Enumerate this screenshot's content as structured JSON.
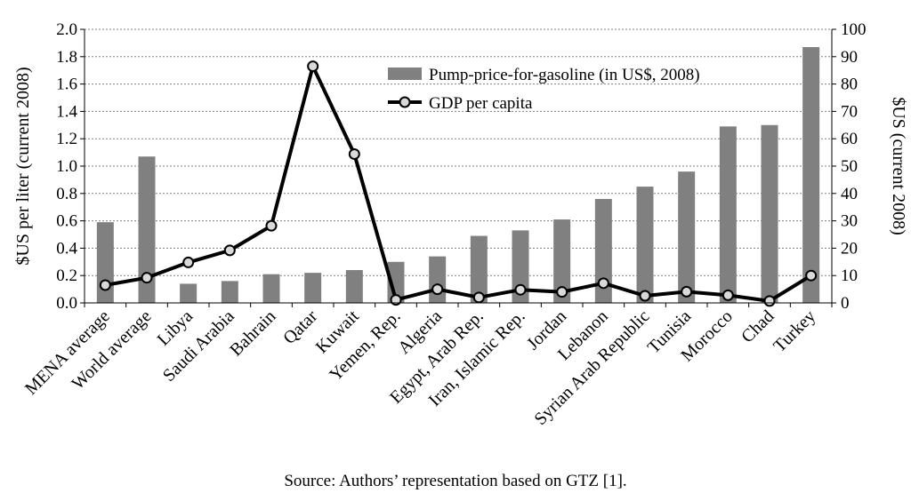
{
  "chart_data": {
    "type": "bar+line",
    "categories": [
      "MENA average",
      "World average",
      "Libya",
      "Saudi Arabia",
      "Bahrain",
      "Qatar",
      "Kuwait",
      "Yemen, Rep.",
      "Algeria",
      "Egypt, Arab Rep.",
      "Iran, Islamic Rep.",
      "Jordan",
      "Lebanon",
      "Syrian Arab Republic",
      "Tunisia",
      "Morocco",
      "Chad",
      "Turkey"
    ],
    "series": [
      {
        "name": "Pump-price-for-gasoline (in US$, 2008)",
        "type": "bar",
        "axis": "left",
        "color": "#808080",
        "values": [
          0.59,
          1.07,
          0.14,
          0.16,
          0.21,
          0.22,
          0.24,
          0.3,
          0.34,
          0.49,
          0.53,
          0.61,
          0.76,
          0.85,
          0.96,
          1.29,
          1.3,
          1.87
        ]
      },
      {
        "name": "GDP per capita",
        "type": "line",
        "axis": "right",
        "color": "#000000",
        "marker_fill": "#d9d9d9",
        "values": [
          6.5,
          9.2,
          14.8,
          19.2,
          28.2,
          86.5,
          54.4,
          1.1,
          5.0,
          2.0,
          4.8,
          4.0,
          7.2,
          2.6,
          4.1,
          2.8,
          0.7,
          10.0
        ]
      }
    ],
    "ylabel": "$US per liter (current 2008)",
    "ylabel_right": "$US (current 2008)",
    "ylim": [
      0,
      2.0
    ],
    "ylim_right": [
      0,
      100
    ],
    "yticks": [
      "0.0",
      "0.2",
      "0.4",
      "0.6",
      "0.8",
      "1.0",
      "1.2",
      "1.4",
      "1.6",
      "1.8",
      "2.0"
    ],
    "yticks_right": [
      "0",
      "10",
      "20",
      "30",
      "40",
      "50",
      "60",
      "70",
      "80",
      "90",
      "100"
    ],
    "grid": true,
    "legend_position": "top-center"
  },
  "caption": "Source: Authors’ representation based on GTZ [1]."
}
